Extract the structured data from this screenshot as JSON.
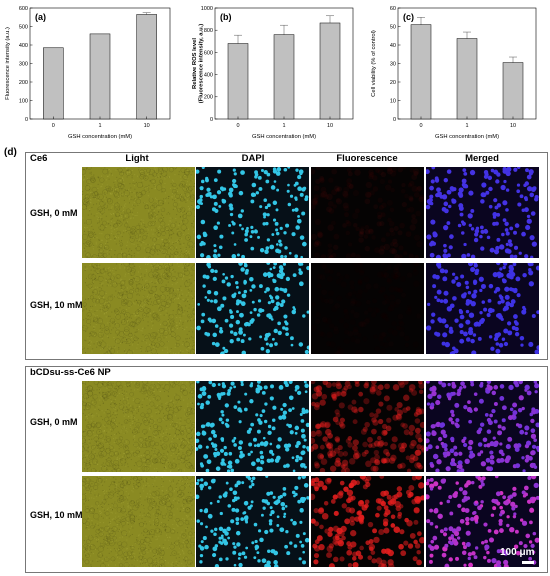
{
  "chart_data": [
    {
      "type": "bar",
      "panel_label": "(a)",
      "categories": [
        "0",
        "1",
        "10"
      ],
      "values": [
        385,
        460,
        565
      ],
      "errors": [
        0,
        0,
        10
      ],
      "xlabel": "GSH concentration (mM)",
      "ylabel": "Fluorescence intensity (a.u.)",
      "ylim": [
        0,
        600
      ],
      "yticks": [
        "0",
        "100",
        "200",
        "300",
        "400",
        "500",
        "600"
      ]
    },
    {
      "type": "bar",
      "panel_label": "(b)",
      "categories": [
        "0",
        "1",
        "10"
      ],
      "values": [
        680,
        760,
        865
      ],
      "errors": [
        75,
        85,
        65
      ],
      "xlabel": "GSH concentration (mM)",
      "ylabel": "Relative ROS level (Fluorescence intensity, a.u.)",
      "ylabel_lines": [
        "Relative ROS level",
        "(Fluorescence intensity, a.u.)"
      ],
      "ylim": [
        0,
        1000
      ],
      "yticks": [
        "0",
        "200",
        "400",
        "600",
        "800",
        "1000"
      ]
    },
    {
      "type": "bar",
      "panel_label": "(c)",
      "categories": [
        "0",
        "1",
        "10"
      ],
      "values": [
        51,
        43.5,
        30.5
      ],
      "errors": [
        4,
        3.5,
        3
      ],
      "xlabel": "GSH concentration (mM)",
      "ylabel": "Cell viability (% of control)",
      "ylim": [
        0,
        60
      ],
      "yticks": [
        "0",
        "10",
        "20",
        "30",
        "40",
        "50",
        "60"
      ]
    }
  ],
  "panel_d": {
    "label": "(d)",
    "columns": [
      "Light",
      "DAPI",
      "Fluorescence",
      "Merged"
    ],
    "groups": [
      {
        "name": "Ce6",
        "rows": [
          {
            "label": "GSH, 0 mM",
            "fluor_level": 0.06
          },
          {
            "label": "GSH, 10 mM",
            "fluor_level": 0.02
          }
        ]
      },
      {
        "name": "bCDsu-ss-Ce6 NP",
        "rows": [
          {
            "label": "GSH, 0 mM",
            "fluor_level": 0.55
          },
          {
            "label": "GSH, 10 mM",
            "fluor_level": 0.9
          }
        ]
      }
    ],
    "scale_bar": "100 μm"
  },
  "colors": {
    "bar_fill": "#c0c0c0",
    "light_field": "#8a8a22",
    "dapi_bg": "#061018",
    "dapi_cell": "#33c6e6",
    "fluor_cell": "#e02020",
    "merged_bg": "#0a0520",
    "merged_cell": "#3a3ae6"
  }
}
